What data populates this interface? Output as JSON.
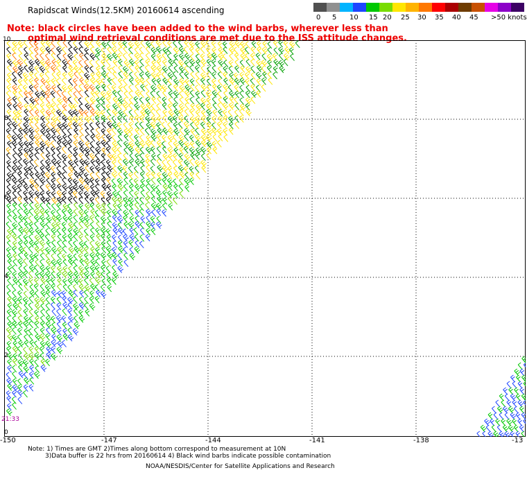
{
  "title": "Rapidscat Winds(12.5KM) 20160614 ascending",
  "note_line1": "Note: black circles have been added to the wind barbs, wherever less than",
  "note_line2": "optimal wind retrieval conditions are met due to the ISS attitude changes.",
  "scale": {
    "colors": [
      "#505050",
      "#909090",
      "#00b4ff",
      "#1e46ff",
      "#00c800",
      "#78dc00",
      "#ffe600",
      "#ffb400",
      "#ff7800",
      "#ff0000",
      "#aa0000",
      "#6e3c00",
      "#c85000",
      "#e600e6",
      "#8c00c8",
      "#3c0064"
    ],
    "labels": [
      "0",
      "5",
      "10",
      "15",
      "20",
      "25",
      "30",
      "35",
      "40",
      "45",
      ">50 knots"
    ]
  },
  "lat_labels": [
    "10",
    "8",
    "6",
    "4",
    "2",
    "0"
  ],
  "lon_labels": [
    "-150",
    "-147",
    "-144",
    "-141",
    "-138",
    "-13"
  ],
  "time_label": "21:33",
  "footer": {
    "line1": "Note: 1) Times are GMT 2)Times along bottom correspond to measurement at 10N",
    "line2": "3)Data buffer is 22 hrs from 20160614 4) Black wind barbs indicate possible contamination",
    "line3": "NOAA/NESDIS/Center for Satellite Applications and Research"
  }
}
